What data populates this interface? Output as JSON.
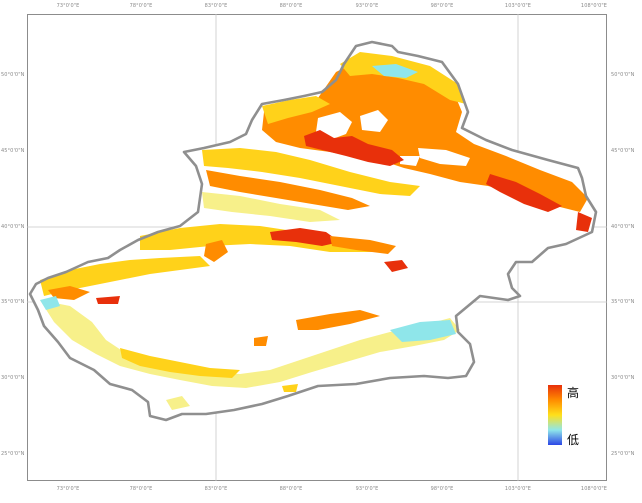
{
  "map": {
    "lon_ticks": [
      "73°0'0\"E",
      "78°0'0\"E",
      "83°0'0\"E",
      "88°0'0\"E",
      "93°0'0\"E",
      "98°0'0\"E",
      "103°0'0\"E",
      "108°0'0\"E"
    ],
    "lat_ticks": [
      "50°0'0\"N",
      "45°0'0\"N",
      "40°0'0\"N",
      "35°0'0\"N",
      "30°0'0\"N",
      "25°0'0\"N"
    ],
    "colors": {
      "boundary": "#9e9e9e",
      "gridline": "#c8c8c8",
      "high": "#e8300b",
      "orange": "#ff8c00",
      "yellow": "#ffd21a",
      "pale": "#f7f08a",
      "cyan": "#8fe6ea",
      "low": "#2b46e6"
    }
  },
  "legend": {
    "high_label": "高",
    "low_label": "低"
  }
}
